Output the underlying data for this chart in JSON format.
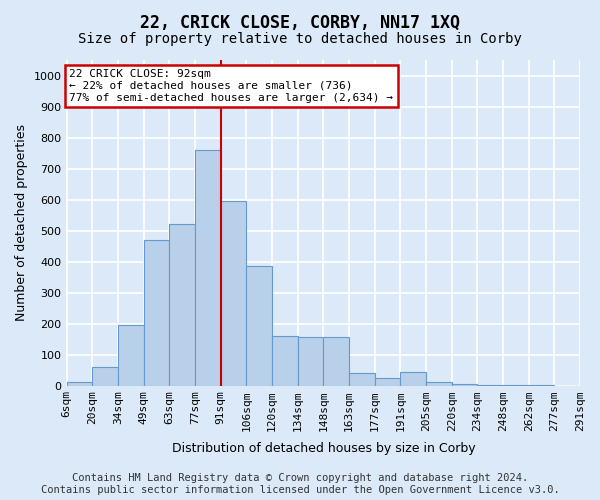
{
  "title": "22, CRICK CLOSE, CORBY, NN17 1XQ",
  "subtitle": "Size of property relative to detached houses in Corby",
  "xlabel": "Distribution of detached houses by size in Corby",
  "ylabel": "Number of detached properties",
  "footer_line1": "Contains HM Land Registry data © Crown copyright and database right 2024.",
  "footer_line2": "Contains public sector information licensed under the Open Government Licence v3.0.",
  "bar_labels": [
    "6sqm",
    "20sqm",
    "34sqm",
    "49sqm",
    "63sqm",
    "77sqm",
    "91sqm",
    "106sqm",
    "120sqm",
    "134sqm",
    "148sqm",
    "163sqm",
    "177sqm",
    "191sqm",
    "205sqm",
    "220sqm",
    "234sqm",
    "248sqm",
    "262sqm",
    "277sqm",
    "291sqm"
  ],
  "bar_values": [
    10,
    60,
    195,
    470,
    520,
    760,
    595,
    385,
    160,
    158,
    155,
    40,
    25,
    43,
    10,
    5,
    3,
    1,
    1,
    0
  ],
  "bar_color": "#b8d0ea",
  "bar_edge_color": "#6699cc",
  "vline_label_idx": 6,
  "vline_color": "#cc0000",
  "annotation_line1": "22 CRICK CLOSE: 92sqm",
  "annotation_line2": "← 22% of detached houses are smaller (736)",
  "annotation_line3": "77% of semi-detached houses are larger (2,634) →",
  "annotation_box_color": "#ffffff",
  "annotation_box_edge": "#cc0000",
  "ylim": [
    0,
    1050
  ],
  "yticks": [
    0,
    100,
    200,
    300,
    400,
    500,
    600,
    700,
    800,
    900,
    1000
  ],
  "background_color": "#dce9f8",
  "plot_bg_color": "#dce9f8",
  "grid_color": "#ffffff",
  "title_fontsize": 12,
  "subtitle_fontsize": 10,
  "axis_label_fontsize": 9,
  "tick_fontsize": 8,
  "footer_fontsize": 7.5
}
